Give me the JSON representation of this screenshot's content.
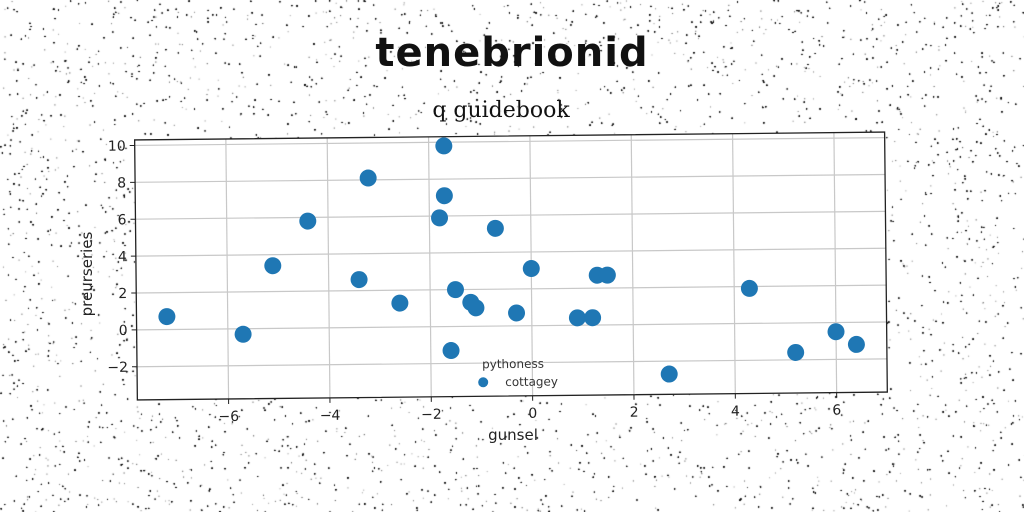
{
  "figure": {
    "supertitle": "tenebrionid"
  },
  "chart_data": {
    "type": "scatter",
    "title": "q guidebook",
    "xlabel": "gunsel",
    "ylabel": "preurseries",
    "xlim": [
      -7.8,
      7.0
    ],
    "ylim": [
      -3.8,
      10.3
    ],
    "x_ticks": [
      -6,
      -4,
      -2,
      0,
      2,
      4,
      6
    ],
    "y_ticks": [
      -2,
      0,
      2,
      4,
      6,
      8,
      10
    ],
    "x_tick_labels": [
      "−6",
      "−4",
      "−2",
      "0",
      "2",
      "4",
      "6"
    ],
    "y_tick_labels": [
      "−2",
      "0",
      "2",
      "4",
      "6",
      "8",
      "10"
    ],
    "grid": true,
    "legend": {
      "title": "pythoness",
      "position": "bottom-center",
      "entries": [
        "cottagey"
      ]
    },
    "series": [
      {
        "name": "cottagey",
        "color": "#1f77b4",
        "points": [
          [
            -7.2,
            0.7
          ],
          [
            -5.7,
            -0.3
          ],
          [
            -5.1,
            3.4
          ],
          [
            -4.4,
            5.8
          ],
          [
            -3.2,
            8.1
          ],
          [
            -3.4,
            2.6
          ],
          [
            -2.6,
            1.3
          ],
          [
            -1.7,
            9.8
          ],
          [
            -1.7,
            7.1
          ],
          [
            -1.8,
            5.9
          ],
          [
            -1.5,
            2.0
          ],
          [
            -1.2,
            1.3
          ],
          [
            -1.1,
            1.0
          ],
          [
            -0.7,
            5.3
          ],
          [
            -0.3,
            0.7
          ],
          [
            -1.6,
            -1.3
          ],
          [
            0.0,
            3.1
          ],
          [
            0.9,
            0.4
          ],
          [
            1.2,
            0.4
          ],
          [
            1.3,
            2.7
          ],
          [
            1.5,
            2.7
          ],
          [
            2.7,
            -2.7
          ],
          [
            4.3,
            1.9
          ],
          [
            5.2,
            -1.6
          ],
          [
            6.0,
            -0.5
          ],
          [
            6.4,
            -1.2
          ]
        ]
      }
    ]
  }
}
